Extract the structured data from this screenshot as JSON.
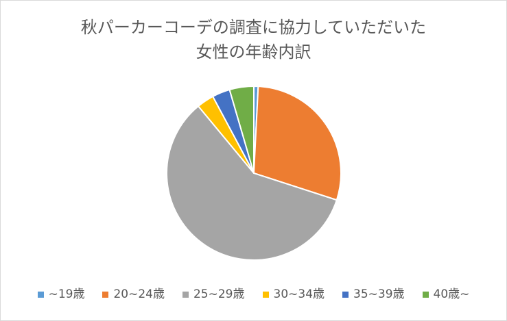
{
  "chart_data": {
    "type": "pie",
    "title_lines": [
      "秋パーカーコーデの調査に協力していただいた",
      "女性の年齢内訳"
    ],
    "categories": [
      "~19歳",
      "20~24歳",
      "25~29歳",
      "30~34歳",
      "35~39歳",
      "40歳~"
    ],
    "values": [
      0.8,
      29.2,
      59.0,
      3.2,
      3.3,
      4.5
    ],
    "colors": [
      "#5b9bd5",
      "#ed7d31",
      "#a5a5a5",
      "#ffc000",
      "#4472c4",
      "#70ad47"
    ],
    "start_angle_deg": 0,
    "direction": "clockwise",
    "legend_position": "bottom"
  }
}
